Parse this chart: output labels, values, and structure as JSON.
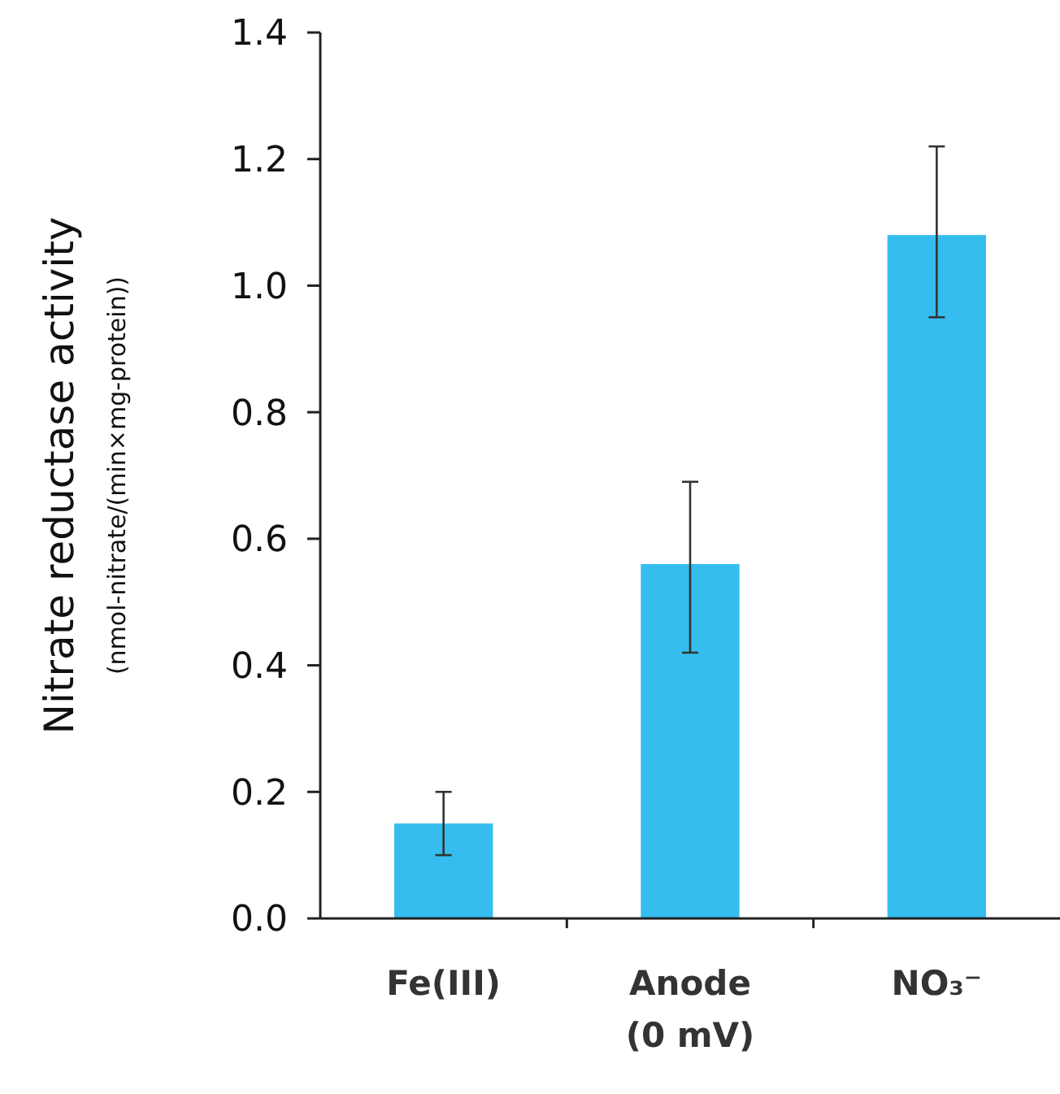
{
  "chart_data": {
    "type": "bar",
    "ylabel": "Nitrate reductase activity\n(nmol-nitrate/(min×mg-protein))",
    "categories": [
      "Fe(III)",
      "Anode\n(0 mV)",
      "NO₃⁻"
    ],
    "values": [
      0.15,
      0.56,
      1.08
    ],
    "color": "#35bdef",
    "errors": [
      [
        0.1,
        0.2
      ],
      [
        0.42,
        0.69
      ],
      [
        0.95,
        1.22
      ]
    ],
    "ylim": [
      0,
      1.4
    ],
    "yticks": [
      {
        "value": 0,
        "label": "0.0"
      },
      {
        "value": 0.2,
        "label": "0.2"
      },
      {
        "value": 0.4,
        "label": "0.4"
      },
      {
        "value": 0.6,
        "label": "0.6"
      },
      {
        "value": 0.8,
        "label": "0.8"
      },
      {
        "value": 1,
        "label": "1.0"
      },
      {
        "value": 1.2,
        "label": "1.2"
      },
      {
        "value": 1.4,
        "label": "1.4"
      }
    ],
    "grid": false
  }
}
